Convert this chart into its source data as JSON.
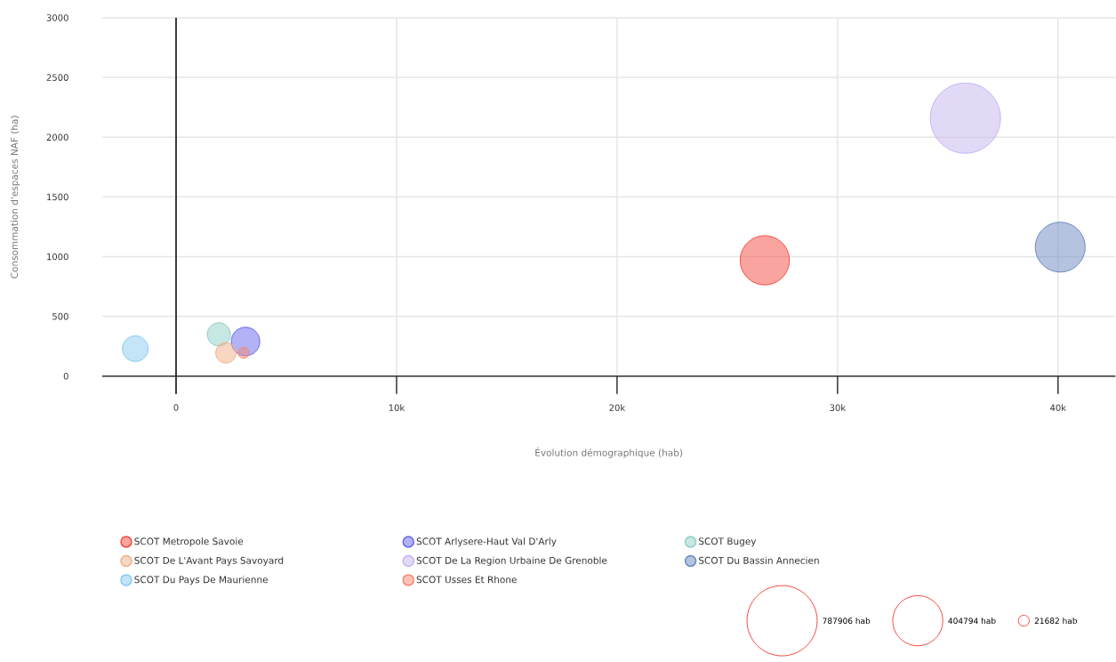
{
  "chart_data": {
    "type": "bubble",
    "xlabel": "Évolution démographique (hab)",
    "ylabel": "Consommation d'espaces NAF (ha)",
    "xlim": [
      -3350,
      42600
    ],
    "ylim": [
      0,
      3000
    ],
    "xticks": [
      0,
      {
        "value": 10000,
        "label": "10k"
      },
      {
        "value": 20000,
        "label": "20k"
      },
      {
        "value": 30000,
        "label": "30k"
      },
      {
        "value": 40000,
        "label": "40k"
      }
    ],
    "yticks": [
      0,
      500,
      1000,
      1500,
      2000,
      2500,
      3000
    ],
    "grid": true,
    "legend": "bottom",
    "size_legend": [
      {
        "value": 787906,
        "label": "787906 hab"
      },
      {
        "value": 404794,
        "label": "404794 hab"
      },
      {
        "value": 21682,
        "label": "21682 hab"
      }
    ],
    "series": [
      {
        "name": "SCOT Metropole Savoie",
        "color": "#f44a3e",
        "x": [
          26700
        ],
        "values": [
          970
        ],
        "sizes": [
          390000
        ]
      },
      {
        "name": "SCOT Arlysere-Haut Val D'Arly",
        "color": "#6666ee",
        "x": [
          3150
        ],
        "values": [
          290
        ],
        "sizes": [
          135000
        ]
      },
      {
        "name": "SCOT Bugey",
        "color": "#8fcfc5",
        "x": [
          1940
        ],
        "values": [
          350
        ],
        "sizes": [
          90000
        ]
      },
      {
        "name": "SCOT De L'Avant Pays Savoyard",
        "color": "#f0b088",
        "x": [
          2260
        ],
        "values": [
          195
        ],
        "sizes": [
          70000
        ]
      },
      {
        "name": "SCOT De La Region Urbaine De Grenoble",
        "color": "#c6b4f0",
        "x": [
          35800
        ],
        "values": [
          2160
        ],
        "sizes": [
          787906
        ]
      },
      {
        "name": "SCOT Du Bassin Annecien",
        "color": "#6b88c0",
        "x": [
          40100
        ],
        "values": [
          1080
        ],
        "sizes": [
          400000
        ]
      },
      {
        "name": "SCOT Du Pays De Maurienne",
        "color": "#88ccf0",
        "x": [
          -1850
        ],
        "values": [
          230
        ],
        "sizes": [
          110000
        ]
      },
      {
        "name": "SCOT Usses Et Rhone",
        "color": "#f88870",
        "x": [
          3060
        ],
        "values": [
          195
        ],
        "sizes": [
          21682
        ]
      }
    ]
  }
}
